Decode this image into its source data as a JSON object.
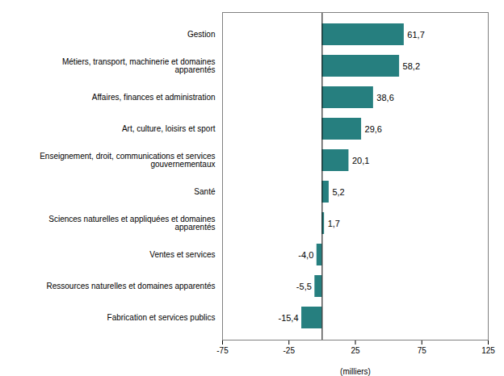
{
  "chart_data": {
    "type": "bar",
    "orientation": "horizontal",
    "categories": [
      "Fabrication et services publics",
      "Ressources naturelles et domaines apparentés",
      "Ventes et services",
      "Sciences naturelles et appliquées et domaines\napparentés",
      "Santé",
      "Enseignement, droit, communications et services\ngouvernementaux",
      "Art, culture, loisirs et sport",
      "Affaires, finances et administration",
      "Métiers, transport, machinerie et domaines\napparentés",
      "Gestion"
    ],
    "values": [
      -15.4,
      -5.5,
      -4.0,
      1.7,
      5.2,
      20.1,
      29.6,
      38.6,
      58.2,
      61.7
    ],
    "value_labels": [
      "-15,4",
      "-5,5",
      "-4,0",
      "1,7",
      "5,2",
      "20,1",
      "29,6",
      "38,6",
      "58,2",
      "61,7"
    ],
    "data_labels": true,
    "color": "#267f7f",
    "xlabel": "(milliers)",
    "xlim": [
      -75,
      125
    ],
    "xticks": [
      -75,
      -25,
      25,
      75,
      125
    ],
    "grid": false
  }
}
